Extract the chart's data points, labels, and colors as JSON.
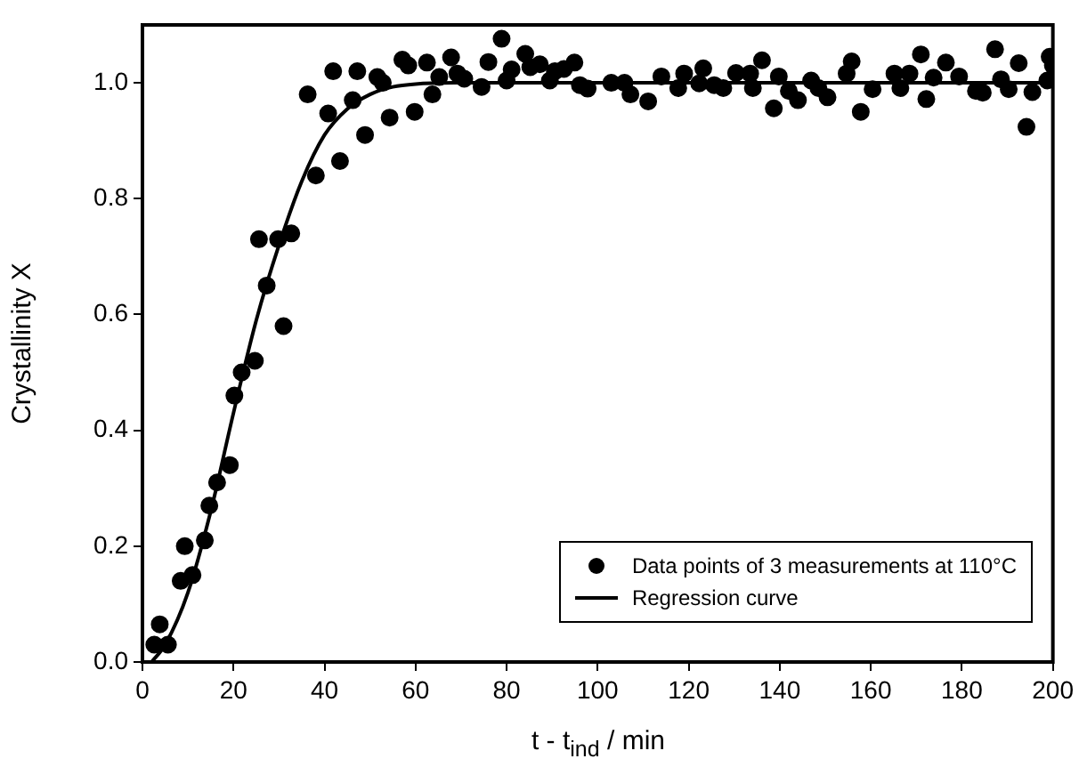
{
  "chart_data": {
    "type": "scatter",
    "xlabel": "t - t$_{ind}$ / min",
    "ylabel": "Crystallinity X",
    "xlim": [
      0,
      200
    ],
    "xticks": [
      0,
      20,
      40,
      60,
      80,
      100,
      120,
      140,
      160,
      180,
      200
    ],
    "ylim": [
      0,
      1.1
    ],
    "yticks": [
      {
        "value": 0,
        "label": "0.0"
      },
      {
        "value": 0.2,
        "label": "0.2"
      },
      {
        "value": 0.4,
        "label": "0.4"
      },
      {
        "value": 0.6,
        "label": "0.6"
      },
      {
        "value": 0.8,
        "label": "0.8"
      },
      {
        "value": 1,
        "label": "1.0"
      }
    ],
    "grid": false,
    "legend": "bottom right",
    "series": [
      {
        "name": "Data points of 3 measurements at 110°C",
        "marker": "circle",
        "color": "#000000",
        "x": [
          2.6,
          3.8,
          5.6,
          8.4,
          9.3,
          11,
          13.7,
          14.7,
          16.4,
          19.2,
          20.2,
          21.8,
          24.7,
          25.6,
          27.3,
          29.8,
          31,
          32.7,
          38.1,
          43.4,
          36.3,
          40.8,
          41.9,
          46.2,
          47.2,
          48.9,
          51.6,
          52.8,
          54.3,
          57.1,
          58.4,
          59.8,
          62.5,
          63.7,
          65.2,
          67.8,
          69.2,
          70.7,
          74.5,
          76,
          78.9,
          80,
          81.1,
          84.1,
          85.2,
          87.3,
          89.5,
          90.6,
          92.6,
          94.9,
          96.1,
          97.8,
          103,
          105.9,
          107.2,
          111.1,
          114,
          117.7,
          119,
          122.3,
          123.2,
          125.6,
          127.6,
          130.4,
          133.5,
          134.1,
          136.1,
          138.7,
          139.8,
          142,
          144,
          146.9,
          148.5,
          150.5,
          154.7,
          155.8,
          157.8,
          160.4,
          165.2,
          166.5,
          168.5,
          171,
          172.2,
          173.8,
          176.5,
          179.4,
          183.1,
          184.6,
          187.3,
          188.6,
          190.3,
          192.5,
          194.2,
          195.5,
          198.8,
          199.3,
          200
        ],
        "values": [
          0.03,
          0.065,
          0.03,
          0.14,
          0.2,
          0.15,
          0.21,
          0.27,
          0.31,
          0.34,
          0.46,
          0.5,
          0.52,
          0.73,
          0.65,
          0.73,
          0.58,
          0.74,
          0.84,
          0.865,
          0.98,
          0.947,
          1.02,
          0.97,
          1.02,
          0.91,
          1.01,
          1.0,
          0.94,
          1.04,
          1.03,
          0.95,
          1.035,
          0.98,
          1.01,
          1.044,
          1.016,
          1.007,
          0.993,
          1.036,
          1.076,
          1.004,
          1.023,
          1.05,
          1.027,
          1.032,
          1.004,
          1.02,
          1.024,
          1.035,
          0.996,
          0.99,
          1.0,
          1.0,
          0.98,
          0.968,
          1.011,
          0.991,
          1.016,
          0.999,
          1.025,
          0.996,
          0.991,
          1.017,
          1.016,
          0.991,
          1.039,
          0.956,
          1.011,
          0.986,
          0.97,
          1.004,
          0.991,
          0.975,
          1.016,
          1.037,
          0.95,
          0.989,
          1.016,
          0.991,
          1.016,
          1.049,
          0.972,
          1.009,
          1.035,
          1.011,
          0.986,
          0.983,
          1.058,
          1.006,
          0.989,
          1.034,
          0.924,
          0.984,
          1.004,
          1.045,
          1.03
        ]
      },
      {
        "name": "Regression curve",
        "type": "line",
        "marker": "none",
        "line_style": "solid",
        "color": "#000000",
        "x": [
          2,
          5,
          10,
          15,
          20,
          25,
          30,
          35,
          40,
          45,
          50,
          55,
          60,
          70,
          200
        ],
        "values": [
          0,
          0.03,
          0.12,
          0.26,
          0.43,
          0.59,
          0.72,
          0.83,
          0.91,
          0.955,
          0.98,
          0.993,
          0.998,
          1.0,
          1.0
        ]
      }
    ]
  }
}
